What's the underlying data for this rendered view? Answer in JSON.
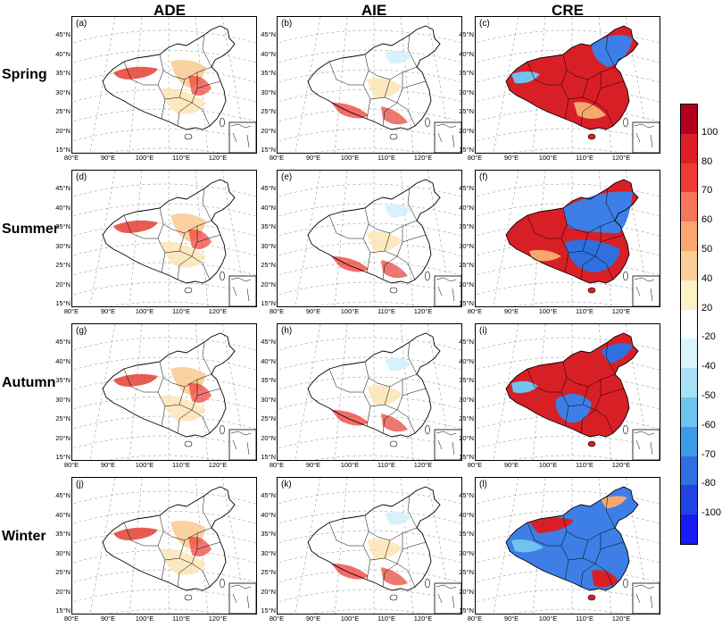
{
  "columns": [
    "ADE",
    "AIE",
    "CRE"
  ],
  "rows": [
    "Spring",
    "Summer",
    "Autumn",
    "Winter"
  ],
  "panel_labels": [
    "(a)",
    "(b)",
    "(c)",
    "(d)",
    "(e)",
    "(f)",
    "(g)",
    "(h)",
    "(i)",
    "(j)",
    "(k)",
    "(l)"
  ],
  "lat_labels": [
    "45°N",
    "40°N",
    "35°N",
    "30°N",
    "25°N",
    "20°N",
    "15°N"
  ],
  "lon_labels": [
    "80°E",
    "90°E",
    "100°E",
    "110°E",
    "120°E"
  ],
  "colorbar": {
    "ticks": [
      "100",
      "80",
      "70",
      "60",
      "50",
      "40",
      "20",
      "-20",
      "-40",
      "-50",
      "-60",
      "-70",
      "-80",
      "-100"
    ],
    "colors": [
      "#b0001e",
      "#de1f25",
      "#ef3b33",
      "#f7775a",
      "#f8a86e",
      "#fbd098",
      "#fdf1c6",
      "#ffffff",
      "#d9f4fb",
      "#a8e0f4",
      "#6ec4ee",
      "#3d9ae6",
      "#2f70de",
      "#1f44e3",
      "#1a1af2"
    ]
  },
  "cre_colors": {
    "warm": "#e0262b",
    "cool": "#2f70de",
    "mid": "#f8a86e",
    "light": "#a8e0f4"
  }
}
